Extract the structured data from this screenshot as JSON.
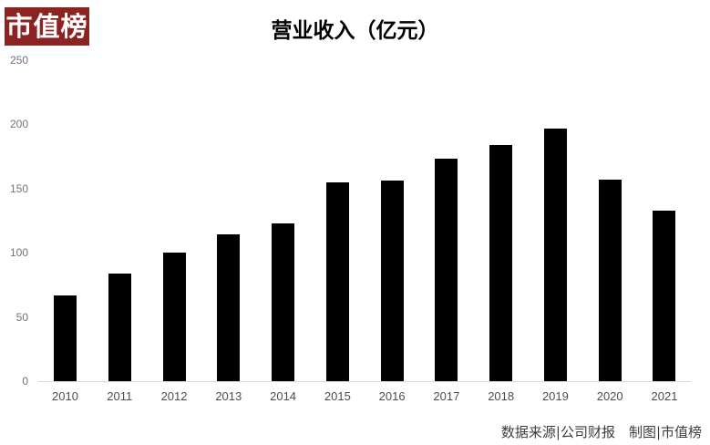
{
  "logo": {
    "text": "市值榜",
    "bg_color": "#8b2323",
    "text_color": "#ffffff"
  },
  "chart_data": {
    "type": "bar",
    "title": "营业收入（亿元）",
    "categories": [
      "2010",
      "2011",
      "2012",
      "2013",
      "2014",
      "2015",
      "2016",
      "2017",
      "2018",
      "2019",
      "2020",
      "2021"
    ],
    "values": [
      67,
      84,
      100,
      114,
      123,
      155,
      156,
      173,
      184,
      197,
      157,
      133
    ],
    "xlabel": "",
    "ylabel": "",
    "ylim": [
      0,
      250
    ],
    "yticks": [
      0,
      50,
      100,
      150,
      200,
      250
    ],
    "grid": false,
    "legend": "none",
    "bar_color": "#000000",
    "baseline_color": "#d9d9d9"
  },
  "footer": {
    "credit": "数据来源|公司财报　制图|市值榜"
  }
}
